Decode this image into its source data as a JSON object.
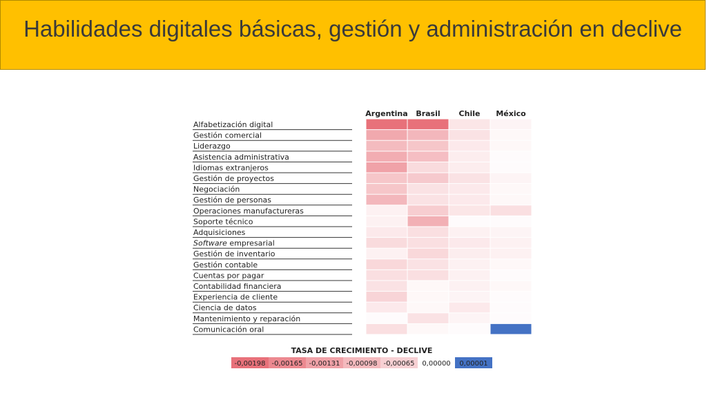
{
  "title": "Habilidades digitales básicas, gestión y administración en declive",
  "colors": {
    "title_bar": "#ffc000",
    "decline_strong": "#e8717a",
    "zero": "#ffffff",
    "growth": "#4472c4"
  },
  "chart_data": {
    "type": "heatmap",
    "columns": [
      "Argentina",
      "Brasil",
      "Chile",
      "México"
    ],
    "rows": [
      {
        "label": "Alfabetización digital",
        "values": [
          -0.00198,
          -0.00198,
          -0.00035,
          -0.00015
        ]
      },
      {
        "label": "Gestión comercial",
        "values": [
          -0.0012,
          -0.001,
          -0.0004,
          -0.0001
        ]
      },
      {
        "label": "Liderazgo",
        "values": [
          -0.00095,
          -0.0008,
          -0.0003,
          -0.0001
        ]
      },
      {
        "label": "Asistencia administrativa",
        "values": [
          -0.00115,
          -0.0009,
          -0.00025,
          -5e-05
        ]
      },
      {
        "label": "Idiomas extranjeros",
        "values": [
          -0.0013,
          -0.0005,
          -0.00025,
          -5e-05
        ]
      },
      {
        "label": "Gestión de proyectos",
        "values": [
          -0.0008,
          -0.00075,
          -0.0004,
          -0.00015
        ]
      },
      {
        "label": "Negociación",
        "values": [
          -0.0008,
          -0.0004,
          -0.0003,
          -0.0001
        ]
      },
      {
        "label": "Gestión de personas",
        "values": [
          -0.001,
          -0.0004,
          -0.0003,
          -0.0001
        ]
      },
      {
        "label": "Operaciones manufactureras",
        "values": [
          -0.0002,
          -0.0007,
          -0.00035,
          -0.00045
        ]
      },
      {
        "label": "Soporte técnico",
        "values": [
          -0.0002,
          -0.0011,
          -5e-05,
          -5e-05
        ]
      },
      {
        "label": "Adquisiciones",
        "values": [
          -0.0003,
          -0.00045,
          -0.0002,
          -0.00015
        ]
      },
      {
        "label": "Software empresarial",
        "italic_word": "Software",
        "values": [
          -0.0005,
          -0.00045,
          -0.0003,
          -0.0002
        ]
      },
      {
        "label": "Gestión de inventario",
        "values": [
          -0.0002,
          -0.00055,
          -0.00025,
          -0.0002
        ]
      },
      {
        "label": "Gestión contable",
        "values": [
          -0.00055,
          -0.0004,
          -0.0002,
          -0.0001
        ]
      },
      {
        "label": "Cuentas por pagar",
        "values": [
          -0.00045,
          -0.00045,
          -0.0002,
          -5e-05
        ]
      },
      {
        "label": "Contabilidad financiera",
        "values": [
          -0.0004,
          -0.0001,
          -0.0002,
          -0.0001
        ]
      },
      {
        "label": "Experiencia de cliente",
        "values": [
          -0.0006,
          -0.0001,
          -0.00015,
          -5e-05
        ]
      },
      {
        "label": "Ciencia de datos",
        "values": [
          -0.0003,
          -0.0001,
          -0.0003,
          -5e-05
        ]
      },
      {
        "label": "Mantenimiento y reparación",
        "values": [
          -5e-05,
          -0.0004,
          -0.00015,
          -5e-05
        ]
      },
      {
        "label": "Comunicación oral",
        "values": [
          -0.00045,
          -0.0001,
          -5e-05,
          1e-05
        ]
      }
    ],
    "legend": {
      "title": "TASA DE CRECIMIENTO - DECLIVE",
      "items": [
        {
          "label": "-0,00198",
          "value": -0.00198
        },
        {
          "label": "-0,00165",
          "value": -0.00165
        },
        {
          "label": "-0,00131",
          "value": -0.00131
        },
        {
          "label": "-0,00098",
          "value": -0.00098
        },
        {
          "label": "-0,00065",
          "value": -0.00065
        },
        {
          "label": "0,00000",
          "value": 0.0
        },
        {
          "label": "0,00001",
          "value": 1e-05
        }
      ]
    },
    "range": [
      -0.00198,
      1e-05
    ]
  }
}
